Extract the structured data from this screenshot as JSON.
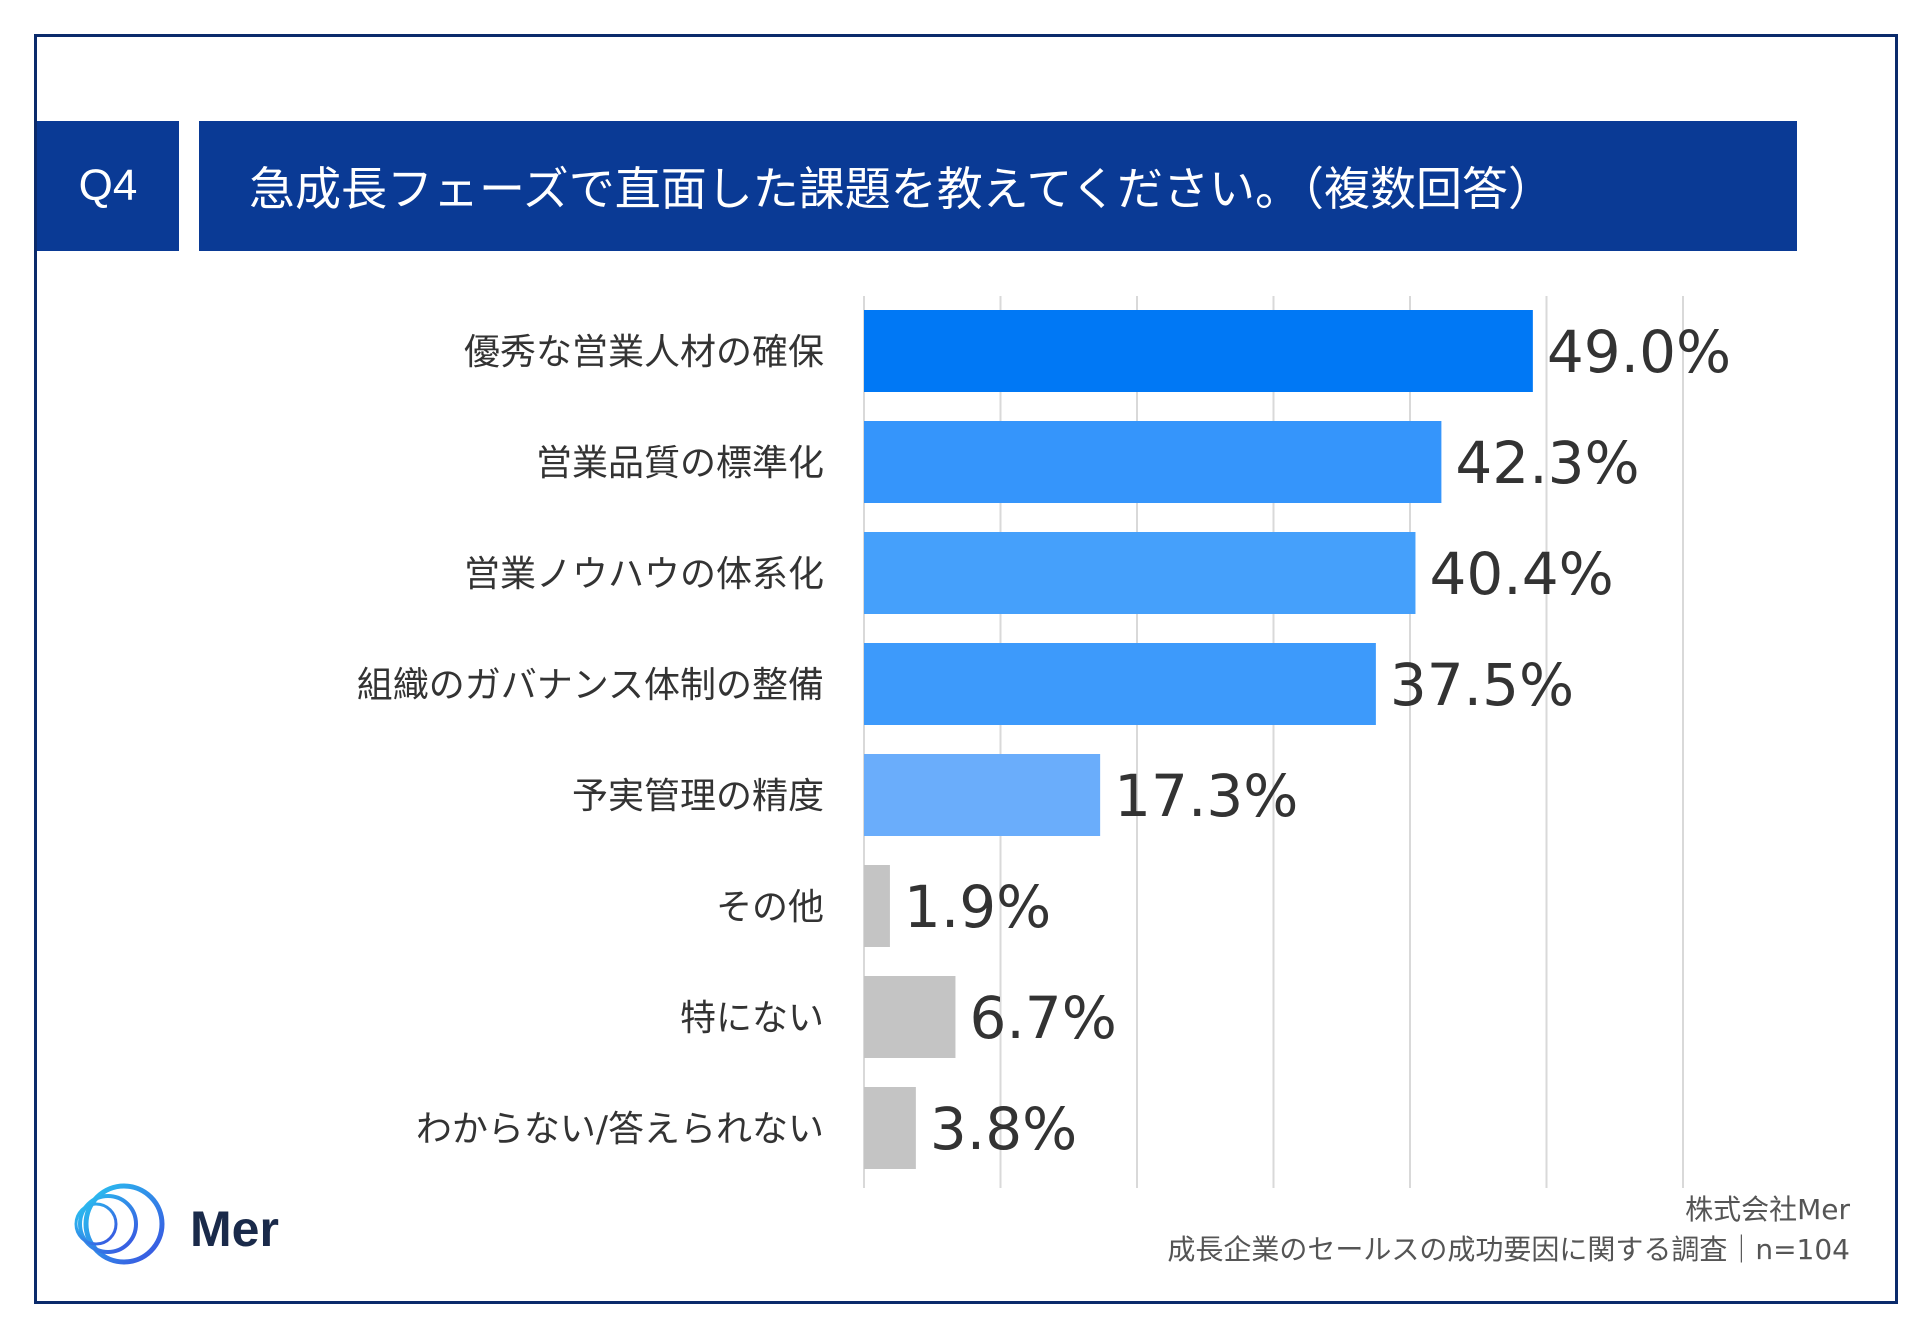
{
  "header": {
    "question_id": "Q4",
    "title": "急成長フェーズで直面した課題を教えてください。（複数回答）"
  },
  "chart_data": {
    "type": "bar",
    "orientation": "horizontal",
    "title": "急成長フェーズで直面した課題を教えてください。（複数回答）",
    "categories": [
      "優秀な営業人材の確保",
      "営業品質の標準化",
      "営業ノウハウの体系化",
      "組織のガバナンス体制の整備",
      "予実管理の精度",
      "その他",
      "特にない",
      "わからない/答えられない"
    ],
    "values": [
      49.0,
      42.3,
      40.4,
      37.5,
      17.3,
      1.9,
      6.7,
      3.8
    ],
    "value_labels": [
      "49.0%",
      "42.3%",
      "40.4%",
      "37.5%",
      "17.3%",
      "1.9%",
      "6.7%",
      "3.8%"
    ],
    "colors": [
      "#0078f5",
      "#3595fb",
      "#45a0fb",
      "#3d9afb",
      "#6aadfb",
      "#c4c4c4",
      "#c4c4c4",
      "#c4c4c4"
    ],
    "xlim": [
      0,
      60
    ],
    "grid": true,
    "xlabel": "",
    "ylabel": ""
  },
  "branding": {
    "logo_text": "Mer"
  },
  "footer": {
    "company": "株式会社Mer",
    "survey": "成長企業のセールスの成功要因に関する調査｜n=104"
  }
}
